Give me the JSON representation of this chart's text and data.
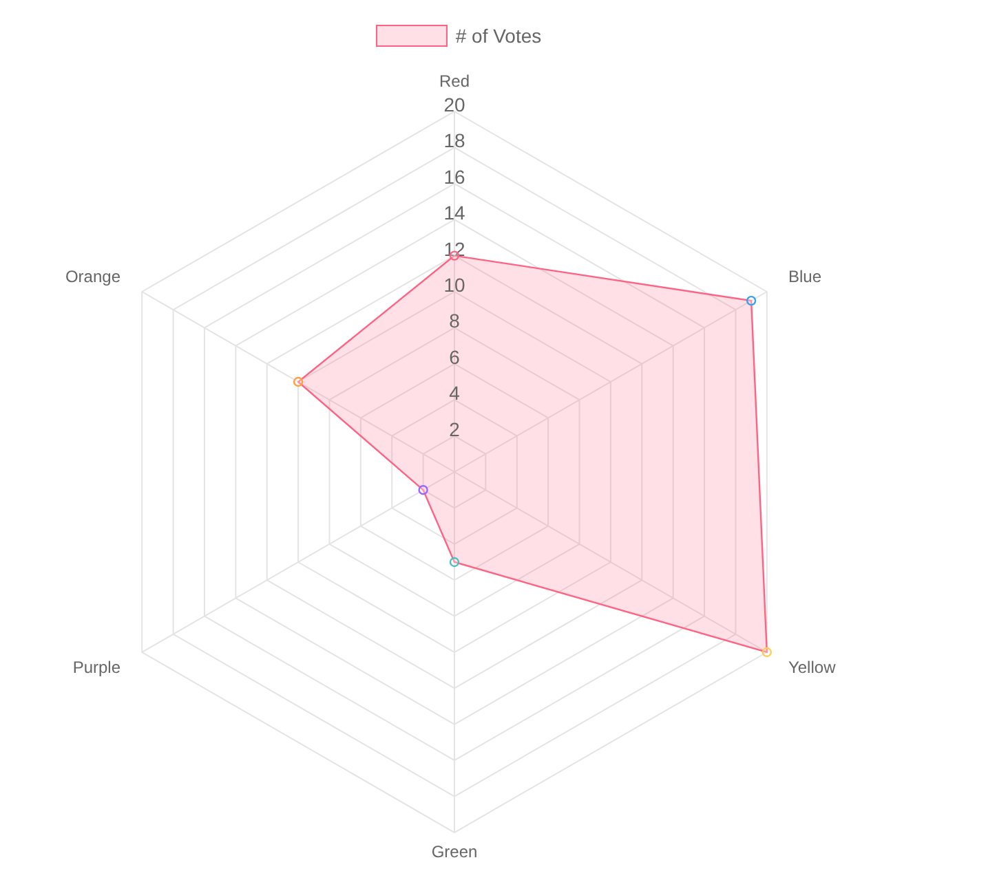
{
  "chart_data": {
    "type": "radar",
    "categories": [
      "Red",
      "Blue",
      "Yellow",
      "Green",
      "Purple",
      "Orange"
    ],
    "series": [
      {
        "name": "# of Votes",
        "color": "#ff6384",
        "values": [
          12,
          19,
          20,
          5,
          2,
          10
        ],
        "colors": [
          "#ff6384",
          "#36a2eb",
          "#ffce56",
          "#4bc0c0",
          "#9966ff",
          "#ff9f40"
        ]
      }
    ],
    "ylim": [
      0,
      20
    ],
    "yticks": [
      2,
      4,
      6,
      8,
      10,
      12,
      14,
      16,
      18,
      20
    ],
    "grid": true,
    "legend": "top",
    "marker": "circle"
  }
}
